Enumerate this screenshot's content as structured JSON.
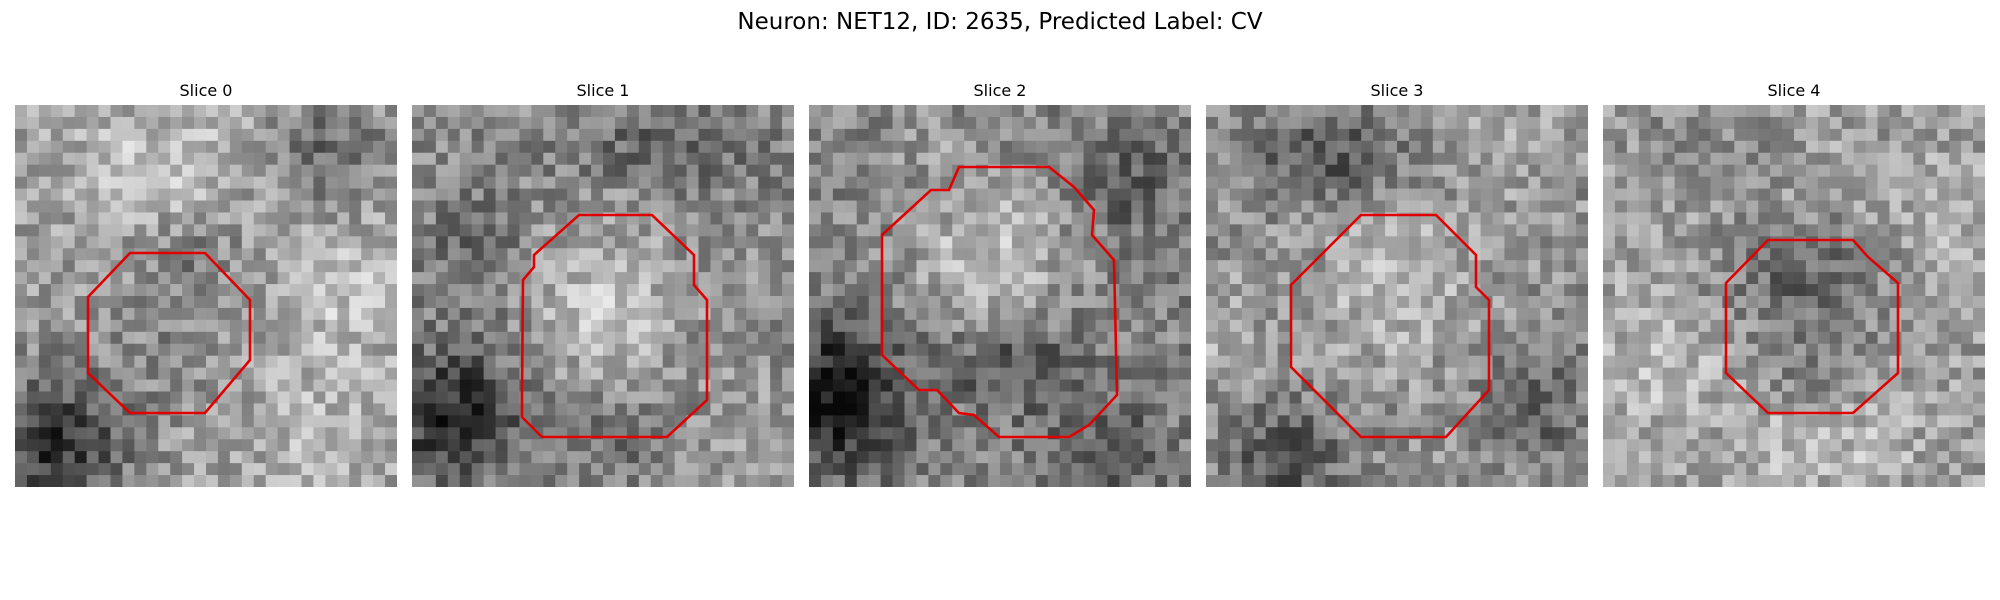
{
  "figure": {
    "title": "Neuron: NET12, ID: 2635, Predicted Label: CV",
    "outline_color": "#e00000",
    "colormap": "gray"
  },
  "slices": [
    {
      "label": "Slice 0"
    },
    {
      "label": "Slice 1"
    },
    {
      "label": "Slice 2"
    },
    {
      "label": "Slice 3"
    },
    {
      "label": "Slice 4"
    }
  ]
}
